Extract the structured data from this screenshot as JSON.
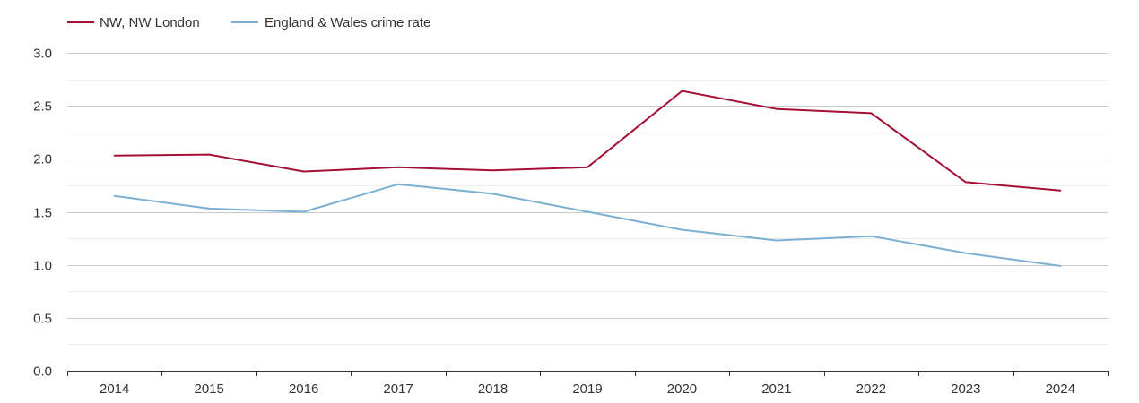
{
  "chart_data": {
    "type": "line",
    "title": "",
    "xlabel": "",
    "ylabel": "",
    "categories": [
      "2014",
      "2015",
      "2016",
      "2017",
      "2018",
      "2019",
      "2020",
      "2021",
      "2022",
      "2023",
      "2024"
    ],
    "ylim": [
      0,
      3
    ],
    "yticks": [
      "0.0",
      "0.5",
      "1.0",
      "1.5",
      "2.0",
      "2.5",
      "3.0"
    ],
    "grid": true,
    "legend_position": "top-left",
    "series": [
      {
        "name": "NW, NW London",
        "color": "#a50f34",
        "values": [
          2.03,
          2.04,
          1.88,
          1.92,
          1.89,
          1.92,
          2.64,
          2.47,
          2.43,
          1.78,
          1.7
        ]
      },
      {
        "name": "England & Wales crime rate",
        "color": "#7bafd4",
        "values": [
          1.65,
          1.53,
          1.5,
          1.76,
          1.67,
          1.5,
          1.33,
          1.23,
          1.27,
          1.11,
          0.99
        ]
      }
    ]
  }
}
